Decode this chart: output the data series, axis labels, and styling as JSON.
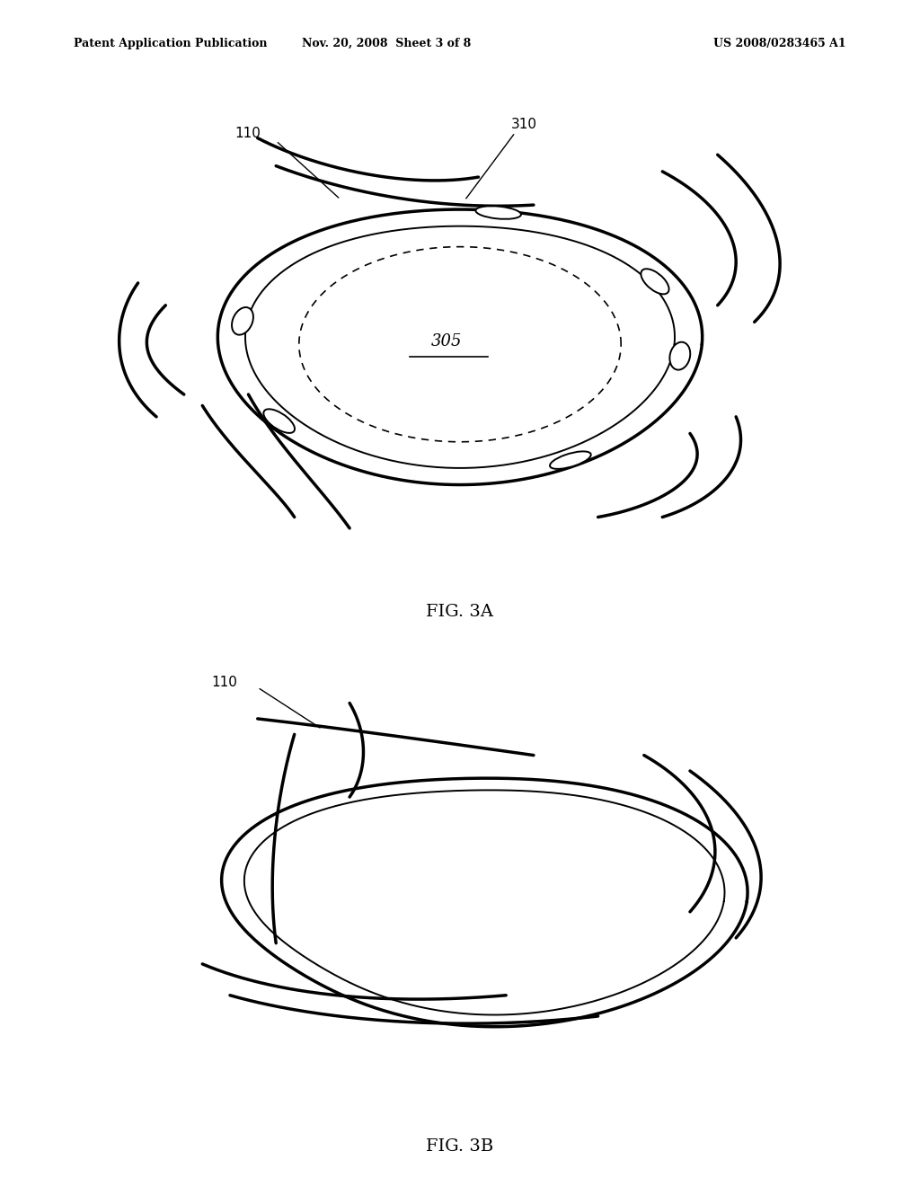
{
  "header_left": "Patent Application Publication",
  "header_mid": "Nov. 20, 2008  Sheet 3 of 8",
  "header_right": "US 2008/0283465 A1",
  "fig3a_label": "FIG. 3A",
  "fig3b_label": "FIG. 3B",
  "label_110a": "110",
  "label_310": "310",
  "label_305": "305",
  "label_110b": "110",
  "bg_color": "#ffffff",
  "line_color": "#000000"
}
